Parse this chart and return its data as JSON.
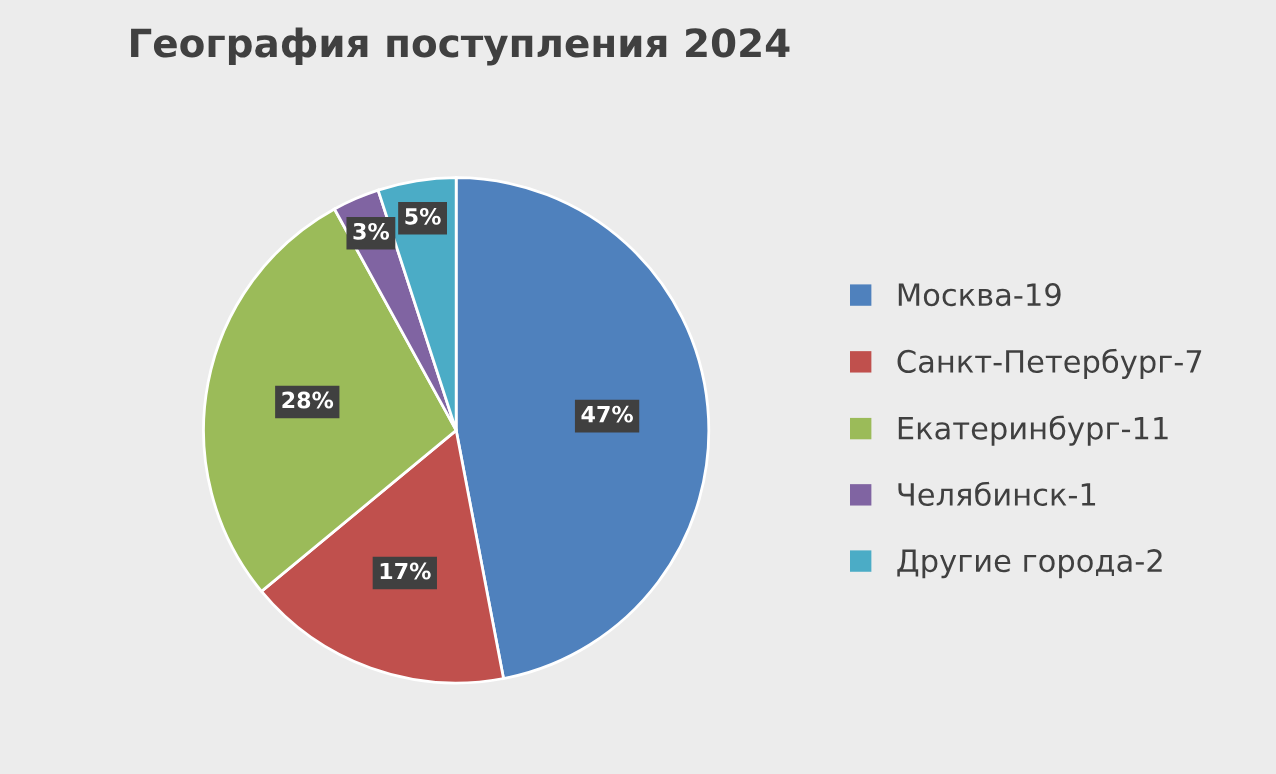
{
  "chart_data": {
    "type": "pie",
    "title": "География поступления 2024",
    "categories": [
      "Москва-19",
      "Санкт-Петербург-7",
      "Екатеринбург-11",
      "Челябинск-1",
      "Другие города-2"
    ],
    "values": [
      47,
      17,
      28,
      3,
      5
    ],
    "colors": [
      "#4f81bd",
      "#c0504d",
      "#9bbb59",
      "#8064a2",
      "#4bacc6"
    ],
    "value_labels": [
      "47%",
      "17%",
      "28%",
      "3%",
      "5%"
    ],
    "legend": "right"
  }
}
